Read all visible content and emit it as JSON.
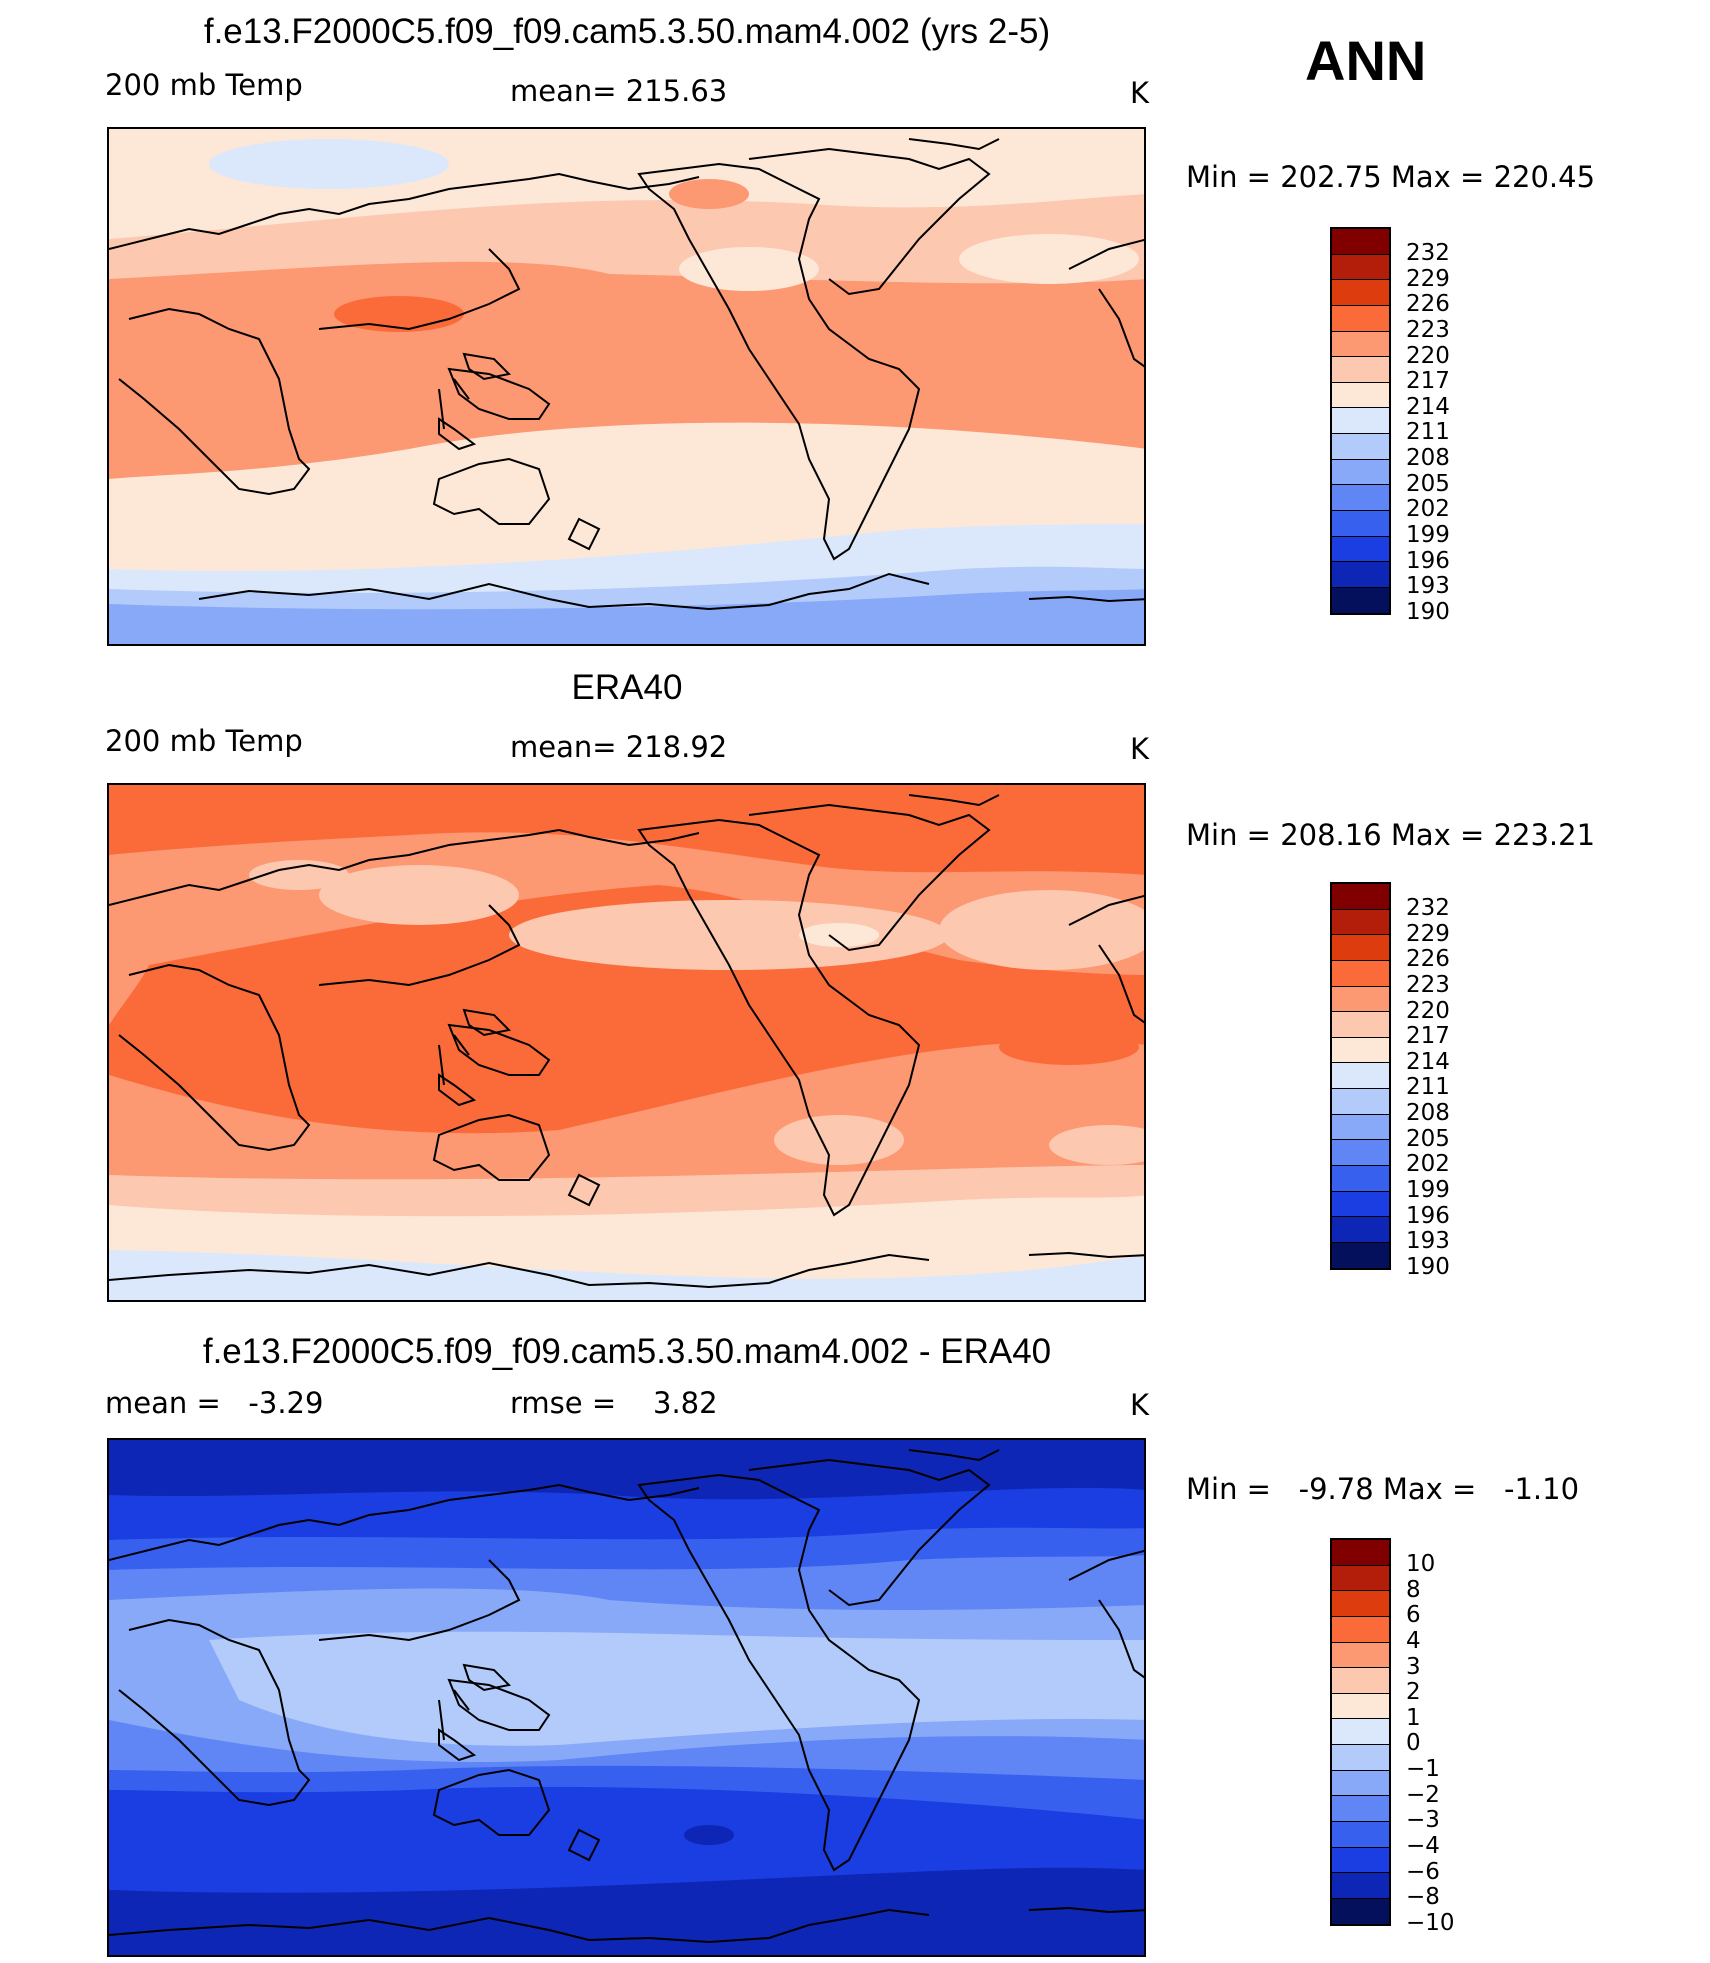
{
  "season": "ANN",
  "unit": "K",
  "land_color": "#000000",
  "panels": [
    {
      "title": "f.e13.F2000C5.f09_f09.cam5.3.50.mam4.002 (yrs 2-5)",
      "left_label": "200 mb Temp",
      "center_label": "mean= 215.63",
      "right_label": "K",
      "minmax": "Min = 202.75 Max = 220.45",
      "colorbar_labels": [
        "232",
        "229",
        "226",
        "223",
        "220",
        "217",
        "214",
        "211",
        "208",
        "205",
        "202",
        "199",
        "196",
        "193",
        "190"
      ],
      "colors": [
        "#800000",
        "#b21e0a",
        "#dd3c0e",
        "#fb6b3a",
        "#fc9872",
        "#fcc8b0",
        "#fde8d8",
        "#dbe8fb",
        "#b3cbfb",
        "#87a9f8",
        "#5f86f4",
        "#3860ef",
        "#1a3ee2",
        "#0d26b5",
        "#05105d"
      ]
    },
    {
      "title": "ERA40",
      "left_label": "200 mb Temp",
      "center_label": "mean= 218.92",
      "right_label": "K",
      "minmax": "Min = 208.16 Max = 223.21",
      "colorbar_labels": [
        "232",
        "229",
        "226",
        "223",
        "220",
        "217",
        "214",
        "211",
        "208",
        "205",
        "202",
        "199",
        "196",
        "193",
        "190"
      ],
      "colors": [
        "#800000",
        "#b21e0a",
        "#dd3c0e",
        "#fb6b3a",
        "#fc9872",
        "#fcc8b0",
        "#fde8d8",
        "#dbe8fb",
        "#b3cbfb",
        "#87a9f8",
        "#5f86f4",
        "#3860ef",
        "#1a3ee2",
        "#0d26b5",
        "#05105d"
      ]
    },
    {
      "title": "f.e13.F2000C5.f09_f09.cam5.3.50.mam4.002 - ERA40",
      "left_label": "mean =   -3.29",
      "center_label": "rmse =    3.82",
      "right_label": "K",
      "minmax": "Min =   -9.78 Max =   -1.10",
      "colorbar_labels": [
        "10",
        "8",
        "6",
        "4",
        "3",
        "2",
        "1",
        "0",
        "−1",
        "−2",
        "−3",
        "−4",
        "−6",
        "−8",
        "−10"
      ],
      "colors": [
        "#800000",
        "#b21e0a",
        "#dd3c0e",
        "#fb6b3a",
        "#fc9872",
        "#fcc8b0",
        "#fde8d8",
        "#dbe8fb",
        "#b3cbfb",
        "#87a9f8",
        "#5f86f4",
        "#3860ef",
        "#1a3ee2",
        "#0d26b5",
        "#05105d"
      ]
    }
  ]
}
